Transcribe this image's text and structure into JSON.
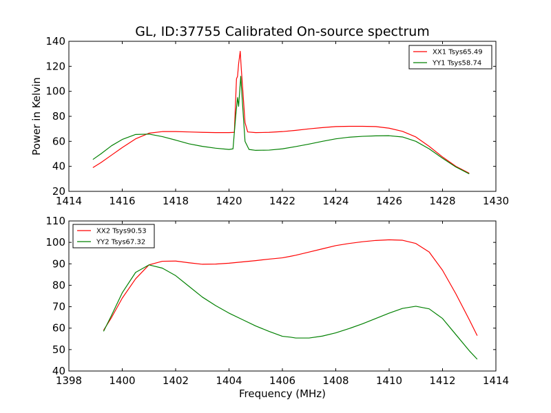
{
  "figure": {
    "title": "GL, ID:37755 Calibrated On-source spectrum"
  },
  "chart_data": [
    {
      "type": "line",
      "title": "GL, ID:37755 Calibrated On-source spectrum",
      "xlabel": "",
      "ylabel": "Power in Kelvin",
      "xlim": [
        1414,
        1430
      ],
      "ylim": [
        20,
        140
      ],
      "xticks": [
        1414,
        1416,
        1418,
        1420,
        1422,
        1424,
        1426,
        1428,
        1430
      ],
      "yticks": [
        20,
        40,
        60,
        80,
        100,
        120,
        140
      ],
      "legend": "top-right",
      "grid": false,
      "series": [
        {
          "name": "XX1 Tsys65.49",
          "color": "#ff0000",
          "x": [
            1414.9,
            1415.2,
            1415.6,
            1416.0,
            1416.5,
            1417.0,
            1417.5,
            1418.0,
            1418.5,
            1419.0,
            1419.5,
            1420.0,
            1420.2,
            1420.28,
            1420.32,
            1420.36,
            1420.42,
            1420.46,
            1420.52,
            1420.6,
            1420.7,
            1421.0,
            1421.5,
            1422.0,
            1422.5,
            1423.0,
            1423.5,
            1424.0,
            1424.5,
            1425.0,
            1425.5,
            1426.0,
            1426.5,
            1427.0,
            1427.5,
            1428.0,
            1428.5,
            1429.0
          ],
          "y": [
            39,
            43,
            49,
            55,
            62,
            66.5,
            67.8,
            67.8,
            67.5,
            67.2,
            67.0,
            67.0,
            67.2,
            110,
            112,
            122,
            132,
            118,
            100,
            75,
            67.5,
            67.0,
            67.2,
            67.8,
            68.8,
            70.0,
            71.0,
            71.8,
            72.0,
            72.0,
            71.8,
            70.5,
            68.0,
            63.5,
            56.0,
            47.5,
            40.0,
            34.5
          ]
        },
        {
          "name": "YY1 Tsys58.74",
          "color": "#008000",
          "x": [
            1414.9,
            1415.2,
            1415.6,
            1416.0,
            1416.5,
            1417.0,
            1417.5,
            1418.0,
            1418.5,
            1419.0,
            1419.5,
            1420.0,
            1420.15,
            1420.25,
            1420.32,
            1420.36,
            1420.4,
            1420.44,
            1420.5,
            1420.6,
            1420.75,
            1421.0,
            1421.5,
            1422.0,
            1422.5,
            1423.0,
            1423.5,
            1424.0,
            1424.5,
            1425.0,
            1425.5,
            1426.0,
            1426.5,
            1427.0,
            1427.5,
            1428.0,
            1428.5,
            1429.0
          ],
          "y": [
            45.5,
            50,
            56.5,
            61.5,
            65.5,
            65.8,
            63.8,
            61.0,
            58.0,
            56.0,
            54.5,
            53.5,
            54.0,
            80,
            95,
            88,
            100,
            112,
            92,
            60,
            53.5,
            52.8,
            53.0,
            54.0,
            55.8,
            57.8,
            60.0,
            62.0,
            63.3,
            64.0,
            64.4,
            64.5,
            63.5,
            60.0,
            54.0,
            46.5,
            39.5,
            34.0
          ]
        }
      ]
    },
    {
      "type": "line",
      "title": "",
      "xlabel": "Frequency (MHz)",
      "ylabel": "",
      "xlim": [
        1398,
        1414
      ],
      "ylim": [
        40,
        110
      ],
      "xticks": [
        1398,
        1400,
        1402,
        1404,
        1406,
        1408,
        1410,
        1412,
        1414
      ],
      "yticks": [
        40,
        50,
        60,
        70,
        80,
        90,
        100,
        110
      ],
      "legend": "top-left",
      "grid": false,
      "series": [
        {
          "name": "XX2 Tsys90.53",
          "color": "#ff0000",
          "x": [
            1399.3,
            1399.6,
            1400.0,
            1400.5,
            1401.0,
            1401.5,
            1402.0,
            1402.5,
            1403.0,
            1403.5,
            1404.0,
            1404.5,
            1405.0,
            1405.5,
            1406.0,
            1406.3,
            1406.5,
            1407.0,
            1407.5,
            1408.0,
            1408.5,
            1409.0,
            1409.5,
            1410.0,
            1410.5,
            1411.0,
            1411.5,
            1412.0,
            1412.5,
            1413.0,
            1413.3
          ],
          "y": [
            59,
            65,
            74,
            83,
            89.5,
            91.2,
            91.3,
            90.5,
            89.8,
            89.9,
            90.3,
            90.9,
            91.5,
            92.2,
            92.8,
            93.5,
            94.0,
            95.5,
            97.0,
            98.5,
            99.5,
            100.3,
            100.9,
            101.2,
            101.0,
            99.5,
            95.5,
            87.0,
            76.0,
            64.0,
            56.5
          ]
        },
        {
          "name": "YY2 Tsys67.32",
          "color": "#008000",
          "x": [
            1399.3,
            1399.6,
            1400.0,
            1400.5,
            1401.0,
            1401.5,
            1402.0,
            1402.5,
            1403.0,
            1403.5,
            1404.0,
            1404.5,
            1405.0,
            1405.5,
            1406.0,
            1406.3,
            1406.5,
            1407.0,
            1407.5,
            1408.0,
            1408.5,
            1409.0,
            1409.5,
            1410.0,
            1410.5,
            1411.0,
            1411.5,
            1412.0,
            1412.5,
            1413.0,
            1413.3
          ],
          "y": [
            58.5,
            66,
            76.5,
            86,
            89.5,
            88,
            84.5,
            79.5,
            74.5,
            70.5,
            67.0,
            64.0,
            61.0,
            58.5,
            56.2,
            55.8,
            55.4,
            55.4,
            56.3,
            57.8,
            59.8,
            62.0,
            64.5,
            67.0,
            69.2,
            70.2,
            69.0,
            64.5,
            57.0,
            49.5,
            45.5
          ]
        }
      ]
    }
  ]
}
